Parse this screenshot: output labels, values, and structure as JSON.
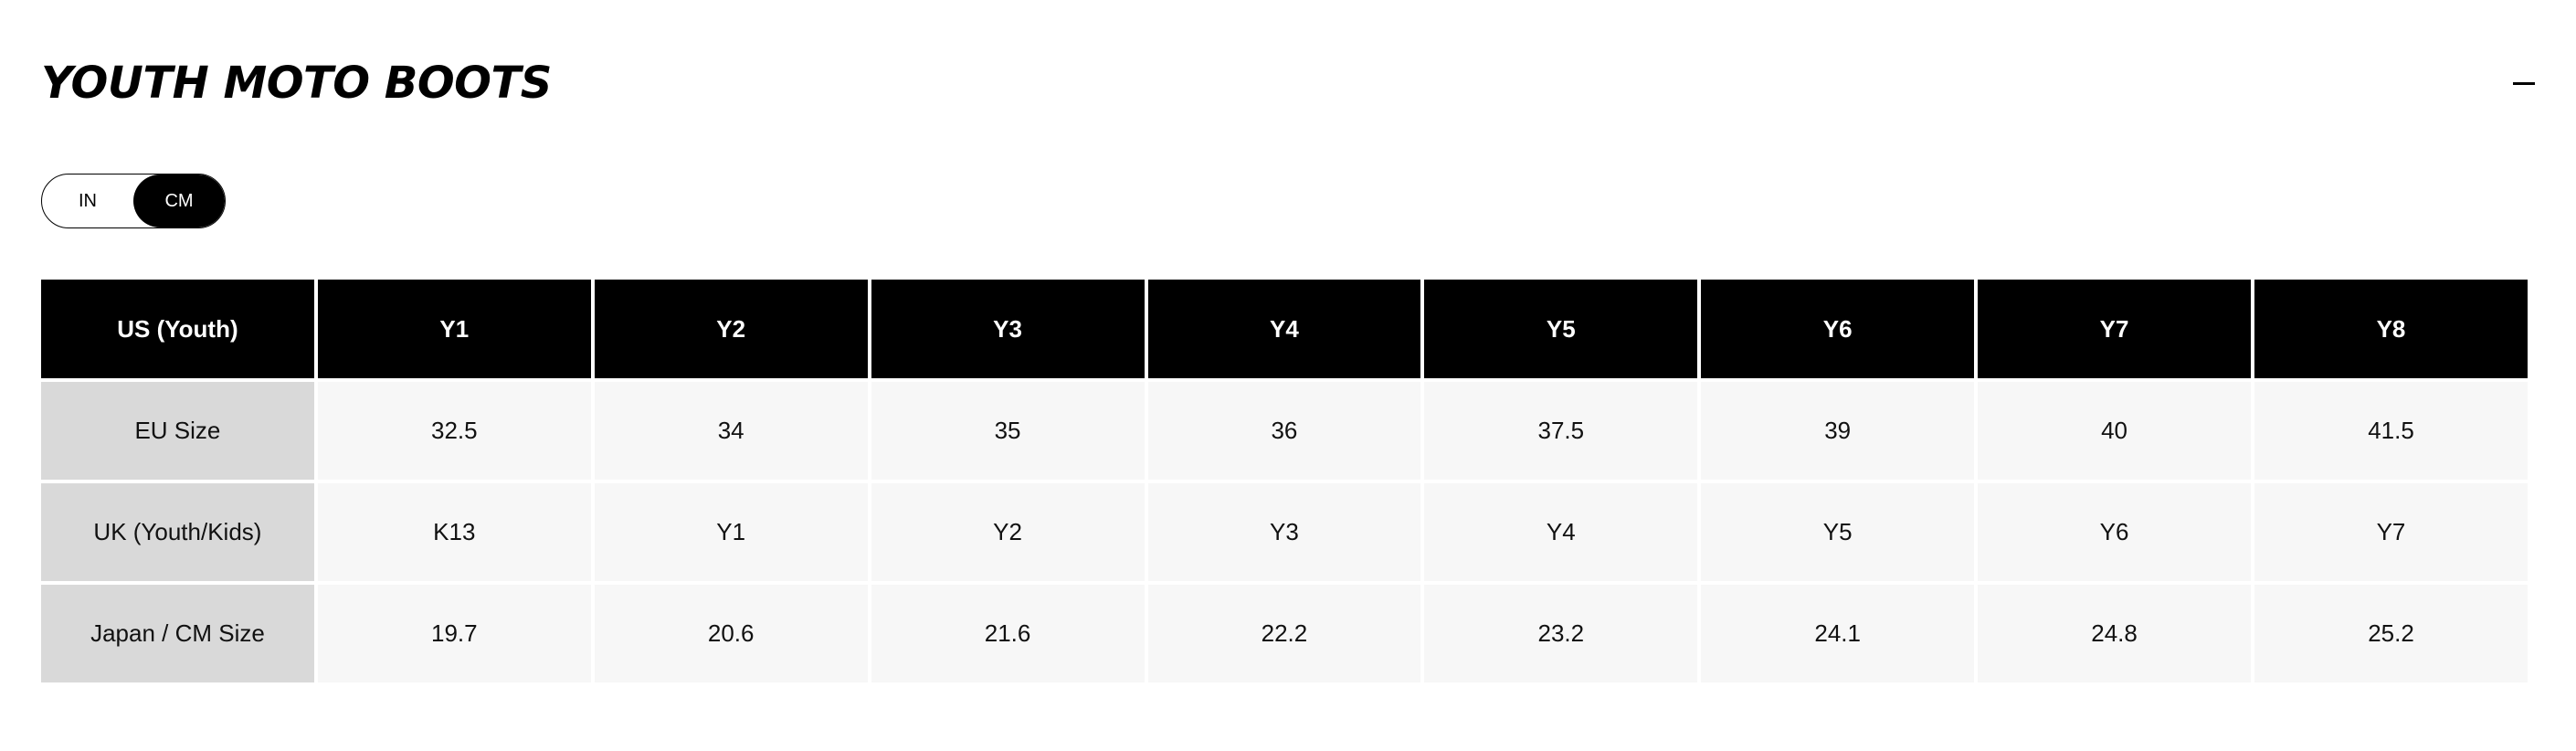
{
  "section": {
    "title": "YOUTH MOTO BOOTS",
    "collapse_icon": "minus-icon"
  },
  "unit_toggle": {
    "options": [
      "IN",
      "CM"
    ],
    "selected": "CM"
  },
  "table": {
    "header": [
      "US (Youth)",
      "Y1",
      "Y2",
      "Y3",
      "Y4",
      "Y5",
      "Y6",
      "Y7",
      "Y8"
    ],
    "rows": [
      {
        "label": "EU Size",
        "values": [
          "32.5",
          "34",
          "35",
          "36",
          "37.5",
          "39",
          "40",
          "41.5"
        ]
      },
      {
        "label": "UK (Youth/Kids)",
        "values": [
          "K13",
          "Y1",
          "Y2",
          "Y3",
          "Y4",
          "Y5",
          "Y6",
          "Y7"
        ]
      },
      {
        "label": "Japan / CM Size",
        "values": [
          "19.7",
          "20.6",
          "21.6",
          "22.2",
          "23.2",
          "24.1",
          "24.8",
          "25.2"
        ]
      }
    ]
  },
  "colors": {
    "header_bg": "#000000",
    "label_bg": "#d9d9d9",
    "cell_bg": "#f7f7f7"
  }
}
